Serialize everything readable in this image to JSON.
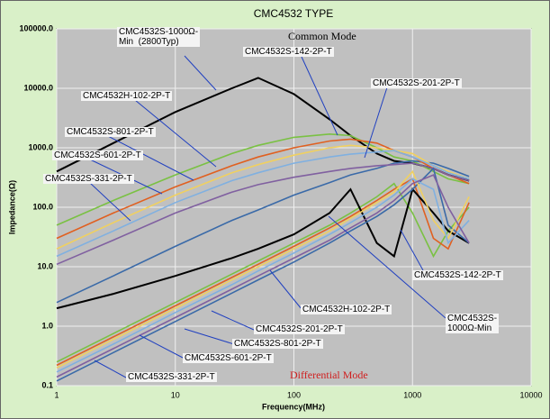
{
  "chart_data": {
    "type": "line",
    "title": "CMC4532 TYPE",
    "x_label": "Frequency(MHz)",
    "y_label": "Impedance(Ω)",
    "annotations": [
      "Common Mode",
      "Differential Mode"
    ],
    "log_x": true,
    "log_y": true,
    "grid": true,
    "xlim": [
      1,
      10000
    ],
    "xticks": [
      1,
      10,
      100,
      1000,
      10000
    ],
    "ylim": [
      0.1,
      100000
    ],
    "yticks": [
      0.1,
      {
        "value": 1,
        "label": "1.0"
      },
      {
        "value": 10,
        "label": "10.0"
      },
      {
        "value": 100,
        "label": "100.0"
      },
      {
        "value": 1000,
        "label": "1000.0"
      },
      {
        "value": 10000,
        "label": "10000.0"
      },
      {
        "value": 100000,
        "label": "100000.0"
      }
    ],
    "x": [
      1,
      3,
      10,
      30,
      50,
      100,
      200,
      300,
      500,
      700,
      1000,
      1500,
      2000,
      3000
    ],
    "series": [
      {
        "name": "CMC4532S-1000Ω-\nMin  (2800Typ)",
        "color": "#000000",
        "values": [
          400,
          1200,
          4000,
          10000,
          15000,
          8000,
          3000,
          1600,
          800,
          600,
          550,
          450,
          350,
          280
        ]
      },
      {
        "name": "CMC4532S-142-2P-T",
        "color": "#7ac143",
        "values": [
          50,
          130,
          350,
          800,
          1100,
          1500,
          1700,
          1600,
          1000,
          700,
          600,
          400,
          300,
          250
        ]
      },
      {
        "name": "CMC4532S-201-2P-T",
        "color": "#3a6aa8",
        "values": [
          2.5,
          7,
          22,
          60,
          90,
          160,
          260,
          350,
          450,
          550,
          600,
          550,
          450,
          330
        ]
      },
      {
        "name": "CMC4532H-102-2P-T",
        "color": "#e06020",
        "values": [
          30,
          80,
          220,
          500,
          700,
          1000,
          1300,
          1400,
          1200,
          900,
          700,
          450,
          350,
          250
        ]
      },
      {
        "name": "CMC4532S-801-2P-T",
        "color": "#f0d060",
        "values": [
          20,
          55,
          160,
          380,
          520,
          750,
          1000,
          1100,
          1000,
          900,
          800,
          500,
          400,
          300
        ]
      },
      {
        "name": "CMC4532S-601-2P-T",
        "color": "#80b0e0",
        "values": [
          15,
          40,
          120,
          280,
          380,
          550,
          700,
          780,
          850,
          900,
          700,
          500,
          380,
          300
        ]
      },
      {
        "name": "CMC4532S-331-2P-T",
        "color": "#8060a0",
        "values": [
          11,
          28,
          80,
          180,
          240,
          320,
          400,
          450,
          500,
          520,
          550,
          450,
          350,
          280
        ]
      },
      {
        "name": "CMC4532S-142-2P-T",
        "color": "#7ac143",
        "values": [
          0.25,
          0.75,
          2.5,
          7.5,
          12.5,
          25,
          50,
          80,
          150,
          250,
          80,
          15,
          40,
          100
        ]
      },
      {
        "name": "CMC4532H-102-2P-T",
        "color": "#e06020",
        "values": [
          0.22,
          0.66,
          2.2,
          6.6,
          11,
          22,
          45,
          70,
          130,
          200,
          300,
          30,
          20,
          120
        ]
      },
      {
        "name": "CMC4532S-\n1000Ω-Min",
        "color": "#000000",
        "values": [
          2,
          3.5,
          7,
          14,
          20,
          35,
          80,
          200,
          25,
          15,
          200,
          80,
          40,
          25
        ]
      },
      {
        "name": "CMC4532S-201-2P-T",
        "color": "#3a6aa8",
        "values": [
          0.12,
          0.36,
          1.2,
          3.6,
          6,
          12,
          25,
          40,
          70,
          110,
          200,
          450,
          50,
          25
        ]
      },
      {
        "name": "CMC4532S-801-2P-T",
        "color": "#f0d060",
        "values": [
          0.2,
          0.6,
          2,
          6,
          10,
          20,
          40,
          65,
          120,
          180,
          400,
          60,
          30,
          150
        ]
      },
      {
        "name": "CMC4532S-601-2P-T",
        "color": "#80b0e0",
        "values": [
          0.17,
          0.5,
          1.7,
          5,
          8.5,
          17,
          35,
          55,
          100,
          160,
          300,
          200,
          25,
          60
        ]
      },
      {
        "name": "CMC4532S-331-2P-T",
        "color": "#8060a0",
        "values": [
          0.14,
          0.42,
          1.4,
          4.2,
          7,
          14,
          28,
          45,
          80,
          130,
          250,
          350,
          100,
          25
        ]
      }
    ]
  }
}
